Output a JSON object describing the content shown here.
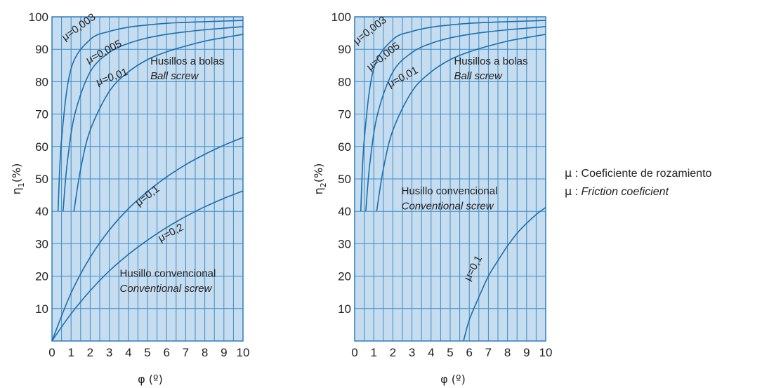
{
  "legend": {
    "line1_symbol": "μ",
    "line1_sep": " : ",
    "line1_text": "Coeficiente de rozamiento",
    "line2_symbol": "μ",
    "line2_sep": " : ",
    "line2_text": "Friction coeficient"
  },
  "colors": {
    "fill": "#c6dcef",
    "grid": "#3f8dc7",
    "curve": "#1a6fb0",
    "border": "#2f7fbf"
  },
  "chart_data": [
    {
      "type": "line",
      "ylabel_main": "η",
      "ylabel_sub": "1",
      "ylabel_unit": "(%)",
      "xlabel": "φ (º)",
      "xlim": [
        0,
        10
      ],
      "ylim": [
        0,
        100
      ],
      "x_ticks": [
        "0",
        "1",
        "2",
        "3",
        "4",
        "5",
        "6",
        "7",
        "8",
        "9",
        "10"
      ],
      "y_ticks": [
        "10",
        "20",
        "30",
        "40",
        "50",
        "60",
        "70",
        "80",
        "90",
        "100"
      ],
      "grid": true,
      "series": [
        {
          "name": "μ=0,003",
          "x": [
            0.32,
            0.5,
            1,
            2,
            3,
            4,
            5,
            6,
            7,
            8,
            9,
            10
          ],
          "y": [
            40,
            62,
            84,
            93,
            95.5,
            96.8,
            97.5,
            98,
            98.3,
            98.5,
            98.7,
            98.9
          ]
        },
        {
          "name": "μ=0,005",
          "x": [
            0.58,
            0.8,
            1.2,
            2,
            3,
            4,
            5,
            6,
            7,
            8,
            9,
            10
          ],
          "y": [
            40,
            55,
            70,
            83,
            89,
            91.8,
            93.5,
            94.6,
            95.4,
            96,
            96.5,
            97
          ]
        },
        {
          "name": "μ=0,01",
          "x": [
            1.15,
            1.5,
            2,
            3,
            4,
            5,
            6,
            7,
            8,
            9,
            10
          ],
          "y": [
            40,
            53,
            65,
            77,
            83,
            86.8,
            89.2,
            91,
            92.5,
            93.6,
            94.6
          ]
        },
        {
          "name": "μ=0,1",
          "x": [
            0,
            1,
            2,
            3,
            4,
            5,
            6,
            7,
            8,
            9,
            10
          ],
          "y": [
            0,
            14.8,
            25.8,
            34.2,
            40.8,
            46.1,
            50.6,
            54.4,
            57.6,
            60.4,
            62.8
          ]
        },
        {
          "name": "μ=0,2",
          "x": [
            0,
            1,
            2,
            3,
            4,
            5,
            6,
            7,
            8,
            9,
            10
          ],
          "y": [
            0,
            8.4,
            15.5,
            21.6,
            26.7,
            31.1,
            35,
            38.4,
            41.4,
            44,
            46.3
          ]
        }
      ],
      "annotations": [
        {
          "text": "μ=0,003",
          "x": 1.5,
          "y": 96,
          "angle": -36
        },
        {
          "text": "μ=0,005",
          "x": 2.8,
          "y": 88.3,
          "angle": -28
        },
        {
          "text": "μ=0,01",
          "x": 3.2,
          "y": 80.5,
          "angle": -20
        },
        {
          "text": "μ=0,1",
          "x": 5.1,
          "y": 44,
          "angle": -38
        },
        {
          "text": "μ=0,2",
          "x": 6.3,
          "y": 32.5,
          "angle": -28
        }
      ],
      "labels": [
        {
          "text": "Husillos a bolas",
          "x": 5.15,
          "y": 85.3,
          "italic": false
        },
        {
          "text": "Ball screw",
          "x": 5.15,
          "y": 80.7,
          "italic": true
        },
        {
          "text": "Husillo convencional",
          "x": 3.55,
          "y": 19.8,
          "italic": false
        },
        {
          "text": "Conventional screw",
          "x": 3.55,
          "y": 15.2,
          "italic": true
        }
      ]
    },
    {
      "type": "line",
      "ylabel_main": "η",
      "ylabel_sub": "2",
      "ylabel_unit": "(%)",
      "xlabel": "φ (º)",
      "xlim": [
        0,
        10
      ],
      "ylim": [
        0,
        100
      ],
      "x_ticks": [
        "0",
        "1",
        "2",
        "3",
        "4",
        "5",
        "6",
        "7",
        "8",
        "9",
        "10"
      ],
      "y_ticks": [
        "10",
        "20",
        "30",
        "40",
        "50",
        "60",
        "70",
        "80",
        "90",
        "100"
      ],
      "grid": true,
      "series": [
        {
          "name": "μ=0,003",
          "x": [
            0.32,
            0.5,
            1,
            2,
            3,
            4,
            5,
            6,
            7,
            8,
            9,
            10
          ],
          "y": [
            40,
            62,
            84,
            93,
            95.5,
            96.8,
            97.5,
            98,
            98.3,
            98.5,
            98.7,
            98.9
          ]
        },
        {
          "name": "μ=0,005",
          "x": [
            0.58,
            0.8,
            1.2,
            2,
            3,
            4,
            5,
            6,
            7,
            8,
            9,
            10
          ],
          "y": [
            40,
            55,
            70,
            83,
            89,
            91.8,
            93.5,
            94.6,
            95.4,
            96,
            96.5,
            97
          ]
        },
        {
          "name": "μ=0,01",
          "x": [
            1.15,
            1.5,
            2,
            3,
            4,
            5,
            6,
            7,
            8,
            9,
            10
          ],
          "y": [
            40,
            53,
            65,
            77,
            83,
            86.8,
            89.2,
            91,
            92.5,
            93.6,
            94.6
          ]
        },
        {
          "name": "μ=0,1",
          "x": [
            5.7,
            6,
            6.5,
            7,
            7.5,
            8,
            8.5,
            9,
            9.5,
            10
          ],
          "y": [
            0,
            6.5,
            13.5,
            20,
            24.8,
            29.3,
            33.2,
            36.3,
            39,
            41.2
          ]
        }
      ],
      "annotations": [
        {
          "text": "μ=0,003",
          "x": 0.9,
          "y": 95,
          "angle": -38
        },
        {
          "text": "μ=0,005",
          "x": 1.6,
          "y": 87,
          "angle": -38
        },
        {
          "text": "μ=0,01",
          "x": 2.6,
          "y": 80.5,
          "angle": -28
        },
        {
          "text": "μ=0,1",
          "x": 6.35,
          "y": 22,
          "angle": -62
        }
      ],
      "labels": [
        {
          "text": "Husillos a bolas",
          "x": 5.2,
          "y": 85.3,
          "italic": false
        },
        {
          "text": "Ball screw",
          "x": 5.2,
          "y": 80.7,
          "italic": true
        },
        {
          "text": "Husillo convencional",
          "x": 2.45,
          "y": 45.2,
          "italic": false
        },
        {
          "text": "Conventional screw",
          "x": 2.45,
          "y": 40.6,
          "italic": true
        }
      ]
    }
  ]
}
